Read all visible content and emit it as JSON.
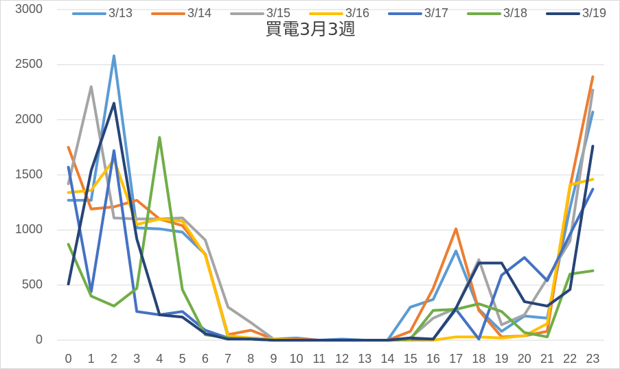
{
  "chart_data": {
    "type": "line",
    "title": "買電3月3週",
    "categories": [
      "0",
      "1",
      "2",
      "3",
      "4",
      "5",
      "6",
      "7",
      "8",
      "9",
      "10",
      "11",
      "12",
      "13",
      "14",
      "15",
      "16",
      "17",
      "18",
      "19",
      "20",
      "21",
      "22",
      "23"
    ],
    "ylim": [
      0,
      3000
    ],
    "yticks": [
      0,
      500,
      1000,
      1500,
      2000,
      2500,
      3000
    ],
    "grid": true,
    "legend": "top",
    "series": [
      {
        "name": "3/13",
        "color": "#5b9bd5",
        "values": [
          1270,
          1270,
          2580,
          1020,
          1010,
          980,
          780,
          30,
          20,
          10,
          20,
          0,
          10,
          0,
          0,
          300,
          370,
          810,
          280,
          80,
          220,
          200,
          1200,
          2070
        ]
      },
      {
        "name": "3/14",
        "color": "#ed7d31",
        "values": [
          1750,
          1190,
          1210,
          1270,
          1100,
          1040,
          780,
          50,
          90,
          10,
          10,
          0,
          0,
          0,
          0,
          80,
          470,
          1010,
          270,
          30,
          40,
          80,
          1390,
          2390
        ]
      },
      {
        "name": "3/15",
        "color": "#a5a5a5",
        "values": [
          1420,
          2300,
          1110,
          1100,
          1100,
          1110,
          910,
          300,
          160,
          10,
          0,
          0,
          0,
          0,
          0,
          20,
          200,
          290,
          730,
          140,
          230,
          560,
          900,
          2270
        ]
      },
      {
        "name": "3/16",
        "color": "#ffc000",
        "values": [
          1340,
          1360,
          1640,
          1050,
          1100,
          1080,
          770,
          40,
          20,
          10,
          0,
          0,
          0,
          0,
          0,
          0,
          0,
          30,
          30,
          20,
          40,
          150,
          1410,
          1460
        ]
      },
      {
        "name": "3/17",
        "color": "#4472c4",
        "values": [
          1570,
          440,
          1720,
          260,
          230,
          260,
          90,
          20,
          10,
          0,
          0,
          0,
          0,
          0,
          0,
          10,
          10,
          280,
          10,
          590,
          750,
          540,
          960,
          1370
        ]
      },
      {
        "name": "3/18",
        "color": "#70ad47",
        "values": [
          870,
          400,
          310,
          470,
          1840,
          460,
          50,
          20,
          10,
          0,
          0,
          0,
          0,
          0,
          0,
          10,
          270,
          280,
          330,
          260,
          70,
          30,
          600,
          630
        ]
      },
      {
        "name": "3/19",
        "color": "#264478",
        "values": [
          510,
          1540,
          2150,
          920,
          230,
          210,
          60,
          10,
          10,
          0,
          0,
          0,
          0,
          0,
          0,
          20,
          10,
          290,
          700,
          700,
          350,
          310,
          460,
          1760
        ]
      }
    ]
  }
}
